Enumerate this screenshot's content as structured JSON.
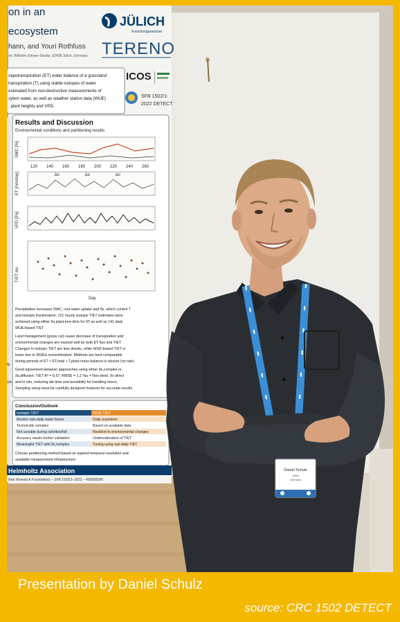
{
  "caption": "Presentation by Daniel Schulz",
  "source": "source: CRC 1502 DETECT",
  "poster": {
    "title_lines": [
      "on in an",
      "ecosystem"
    ],
    "authors": "hann, and Youri Rothfuss",
    "address": "ch, Wilhelm-Johnen-Straße, 52428 Jülich, Germany",
    "logo_julich": "JÜLICH",
    "logo_julich_sub": "Forschungszentrum",
    "logo_tereno": "TERENO",
    "logo_icos": "ICOS",
    "sfb_text": "SFB 1502/1-",
    "detect_text": "2022 DETECT",
    "abstract_lines": [
      "vapotranspiration (ET) water balance of a grassland",
      "transpiration (T) using stable isotopes of water",
      "estimated from non-destructive measurements of",
      "xylem water, as well as weather station data (WUE)",
      ", plant heights and VPD."
    ],
    "results_heading": "Results and Discussion",
    "results_subheading": "Environmental conditions and partitioning results",
    "axis_ticks": [
      "120",
      "140",
      "160",
      "180",
      "200",
      "220",
      "240",
      "260"
    ],
    "x_axis_label": "Day",
    "panel_labels": [
      "SWC [%]",
      "ET [mm/day]",
      "VPD [Pa]",
      "T/ET iso"
    ],
    "month_labels": [
      "Jul",
      "Jul",
      "Jul"
    ],
    "discussion_lines": [
      "Precipitation increases SWC, root water uptake and δx, which control T",
      "and isotopic fractionation: 121 hourly isotopic T/ET estimates were",
      "achieved using either δs,plant,tree-dmo for δT as well as 141 daily",
      "WUE-based T/ET",
      "Land management (grass cut) cause decrease of transpiration and",
      "environmental changes are tracked well by both ET flux and T/ET",
      "Changes in isotopic T/ET are less drastic, while WUE-based T/ET is",
      "lower due to WUEd overestimation. Methods are best comparable",
      "during periods of ET ≈ ET,total + T,plant mass balance is closure (no rain)",
      "Good agreement between approaches using either δs,complex or",
      "δs,diffusion: T/ET R² = 0.57, RMSE = 1.2 %a = Non-destr. δx direct",
      "and in situ, reducing lab time and possibility for handling errors,",
      "Sampling setup must be carefully designed however for accurate results"
    ],
    "conclusion_heading": "Conclusion/Outlook",
    "table_header_left": "Isotopic T/ET",
    "table_header_right": "WUE T/ET",
    "table_rows": [
      {
        "left": "Monitor sub-daily water fluxes",
        "right": "Daily resolution"
      },
      {
        "left": "Technically complex",
        "right": "Based on available data"
      },
      {
        "left": "Not useable during rain/dew/fall",
        "right": "Resilient to environmental changes"
      },
      {
        "left": "Accuracy needs further validation",
        "right": "Underestimation of T/ET"
      },
      {
        "left": "Meaningful T/ET with δs,complex",
        "right": "Tuning using sub-daily T/ET"
      }
    ],
    "closing_lines": [
      "Choose partitioning method based on aspired temporal resolution and",
      "available measurement infrastructure"
    ],
    "footer_org": "Helmholtz Association",
    "footer_sub": "lmar Research Foundation) – SFB 1502/1–2022 – 450058266",
    "left_edge_text": [
      "le",
      "ua."
    ]
  },
  "badge": {
    "name": "Daniel Schulz",
    "line2": "Jülich",
    "line3": "Germany"
  },
  "colors": {
    "frame": "#f5b800",
    "poster_bg": "#f4f4f0",
    "wall": "#dcd6ca",
    "shirt": "#2a2e33",
    "lanyard": "#3b8fd6",
    "floor": "#c9a97b",
    "julich_blue": "#023d6b",
    "icos_green": "#2f7d3b"
  }
}
